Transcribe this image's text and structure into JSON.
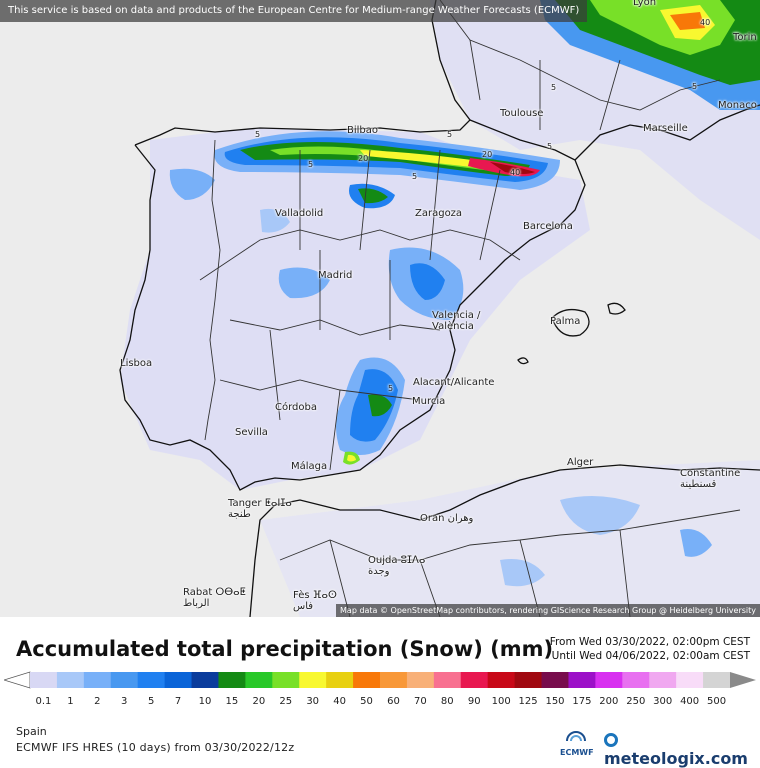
{
  "attribution": {
    "top": "This service is based on data and products of the European Centre for Medium-range Weather Forecasts (ECMWF)",
    "bottom": "Map data © OpenStreetMap contributors, rendering GIScience Research Group @ Heidelberg University"
  },
  "map": {
    "cities": [
      {
        "name": "Lyon"
      },
      {
        "name": "Torin"
      },
      {
        "name": "Monaco"
      },
      {
        "name": "Toulouse"
      },
      {
        "name": "Marseille"
      },
      {
        "name": "Bilbao"
      },
      {
        "name": "Valladolid"
      },
      {
        "name": "Zaragoza"
      },
      {
        "name": "Barcelona"
      },
      {
        "name": "Madrid"
      },
      {
        "name": "Valencia / València"
      },
      {
        "name": "Palma"
      },
      {
        "name": "Lisboa"
      },
      {
        "name": "Alacant/Alicante"
      },
      {
        "name": "Murcia"
      },
      {
        "name": "Córdoba"
      },
      {
        "name": "Sevilla"
      },
      {
        "name": "Málaga"
      },
      {
        "name": "Alger"
      },
      {
        "name": "Constantine قسنطينة"
      },
      {
        "name": "Tanger ⵟⴰⵏⵊⴰ طنجة"
      },
      {
        "name": "Oran وهران"
      },
      {
        "name": "Oujda ⵓⵊⴷⴰ وجدة"
      },
      {
        "name": "Rabat ⵔⴱⴰⵟ الرباط"
      },
      {
        "name": "Fès ⴼⴰⵙ فاس"
      }
    ],
    "contour_labels": [
      "5",
      "5",
      "5",
      "20",
      "20",
      "40",
      "5",
      "5",
      "5",
      "40",
      "5",
      "5"
    ]
  },
  "legend": {
    "title": "Accumulated total precipitation (Snow) (mm)",
    "from": "From Wed 03/30/2022, 02:00pm CEST",
    "until": "Until Wed 04/06/2022, 02:00am CEST",
    "scale_values": [
      "0.1",
      "1",
      "2",
      "3",
      "5",
      "7",
      "10",
      "15",
      "20",
      "25",
      "30",
      "40",
      "50",
      "60",
      "70",
      "80",
      "90",
      "100",
      "125",
      "150",
      "175",
      "200",
      "250",
      "300",
      "400",
      "500"
    ],
    "scale_colors": [
      "#d8d8f4",
      "#a8c8f8",
      "#78b0f8",
      "#4898f0",
      "#2080f0",
      "#0a64d8",
      "#0a3c9c",
      "#148a14",
      "#28c828",
      "#78e028",
      "#f8f830",
      "#e8d010",
      "#f87808",
      "#f89838",
      "#f8b078",
      "#f87090",
      "#e81850",
      "#c80818",
      "#a00810",
      "#780c4c",
      "#9c10c8",
      "#d830f0",
      "#e870f0",
      "#f0a8f0",
      "#f8dcf8",
      "#d4d4d4"
    ],
    "region": "Spain",
    "model": "ECMWF IFS HRES (10 days) from 03/30/2022/12z",
    "ecmwf_logo": "ECMWF",
    "brand": "meteologix.com"
  }
}
